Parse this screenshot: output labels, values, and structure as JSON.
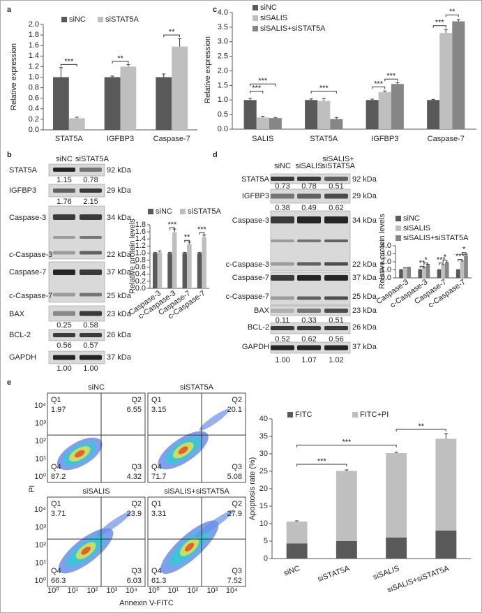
{
  "panels": [
    "a",
    "b",
    "c",
    "d",
    "e"
  ],
  "chart_data": [
    {
      "type": "bar",
      "ylabel": "Relative expression",
      "categories": [
        "STAT5A",
        "IGFBP3",
        "Caspase-7"
      ],
      "series": [
        {
          "name": "siNC",
          "color": "#595959",
          "values": [
            1.0,
            1.0,
            1.0
          ],
          "errors": [
            0.18,
            0.02,
            0.06
          ]
        },
        {
          "name": "siSTAT5A",
          "color": "#bfbfbf",
          "values": [
            0.22,
            1.2,
            1.58
          ],
          "errors": [
            0.02,
            0.04,
            0.15
          ]
        }
      ],
      "ylim": [
        0,
        2
      ],
      "yticks": [
        {
          "value": 0,
          "label": "0.0"
        },
        0.2,
        0.4,
        0.6,
        0.8,
        {
          "value": 1,
          "label": "1.0"
        },
        1.2,
        1.4,
        1.6,
        1.8,
        {
          "value": 2,
          "label": "2.0"
        }
      ],
      "annotations": [
        "***",
        "**",
        "**"
      ]
    },
    {
      "type": "bar",
      "ylabel": "Relative expression",
      "categories": [
        "SALIS",
        "STAT5A",
        "IGFBP3",
        "Caspase-7"
      ],
      "series": [
        {
          "name": "siNC",
          "color": "#595959",
          "values": [
            1.0,
            1.0,
            1.0,
            1.0
          ],
          "errors": [
            0.06,
            0.04,
            0.03,
            0.02
          ]
        },
        {
          "name": "siSALIS",
          "color": "#bfbfbf",
          "values": [
            0.4,
            0.97,
            1.27,
            3.3
          ],
          "errors": [
            0.04,
            0.08,
            0.04,
            0.12
          ]
        },
        {
          "name": "siSALIS+siSTAT5A",
          "color": "#868686",
          "values": [
            0.38,
            0.35,
            1.55,
            3.7
          ],
          "errors": [
            0.02,
            0.05,
            0.05,
            0.06
          ]
        }
      ],
      "ylim": [
        0,
        4
      ],
      "yticks": [
        {
          "value": 0,
          "label": "0.0"
        },
        0.5,
        {
          "value": 1,
          "label": "1.0"
        },
        1.5,
        {
          "value": 2,
          "label": "2.0"
        },
        2.5,
        {
          "value": 3,
          "label": "3.0"
        },
        3.5,
        {
          "value": 4,
          "label": "4.0"
        }
      ],
      "annotations": [
        "***",
        "***",
        "***",
        "***",
        "***",
        "***",
        "**"
      ]
    },
    {
      "type": "bar",
      "ylabel": "Relative protein levels",
      "categories": [
        "Caspase-3",
        "c-Caspase-3",
        "Caspase-7",
        "c-Caspase-7"
      ],
      "series": [
        {
          "name": "siNC",
          "color": "#595959",
          "values": [
            1.0,
            1.0,
            1.0,
            1.0
          ],
          "errors": [
            0.02,
            0.02,
            0.02,
            0.02
          ]
        },
        {
          "name": "siSTAT5A",
          "color": "#bfbfbf",
          "values": [
            1.02,
            1.58,
            1.25,
            1.45
          ],
          "errors": [
            0.04,
            0.1,
            0.06,
            0.06
          ]
        }
      ],
      "ylim": [
        0,
        1.8
      ],
      "yticks": [
        {
          "value": 0,
          "label": "0.0"
        },
        0.2,
        0.4,
        0.6,
        0.8,
        {
          "value": 1,
          "label": "1.0"
        },
        1.2,
        1.4,
        1.6,
        1.8
      ],
      "annotations": [
        "***",
        "**",
        "***"
      ]
    },
    {
      "type": "bar",
      "ylabel": "Relative protein levels",
      "categories": [
        "Caspase-3",
        "c-Caspase-3",
        "Caspase-7",
        "c-Caspase-7"
      ],
      "series": [
        {
          "name": "siNC",
          "color": "#595959",
          "values": [
            1.0,
            1.0,
            1.0,
            1.0
          ],
          "errors": [
            0.02,
            0.02,
            0.02,
            0.02
          ]
        },
        {
          "name": "siSALIS",
          "color": "#bfbfbf",
          "values": [
            1.2,
            1.25,
            1.55,
            2.0
          ],
          "errors": [
            0.05,
            0.08,
            0.08,
            0.1
          ]
        },
        {
          "name": "siSALIS+siSTAT5A",
          "color": "#868686",
          "values": [
            1.25,
            1.6,
            1.85,
            2.8
          ],
          "errors": [
            0.05,
            0.1,
            0.1,
            0.15
          ]
        }
      ],
      "ylim": [
        0,
        4
      ],
      "yticks": [
        {
          "value": 0,
          "label": "0.0"
        },
        {
          "value": 1,
          "label": "1.0"
        },
        {
          "value": 2,
          "label": "2.0"
        },
        {
          "value": 3,
          "label": "3.0"
        },
        {
          "value": 4,
          "label": "4.0"
        }
      ],
      "annotations": [
        "**",
        "*",
        "***",
        "*",
        "***",
        "*"
      ]
    },
    {
      "type": "bar",
      "stacked": true,
      "ylabel": "Apoptosis rate (%)",
      "categories": [
        "siNC",
        "siSTAT5A",
        "siSALIS",
        "siSALIS+siSTAT5A"
      ],
      "series": [
        {
          "name": "FITC",
          "color": "#595959",
          "values": [
            4.3,
            5.0,
            6.0,
            8.0
          ],
          "errors": [
            0.1,
            0.2,
            0.2,
            0.4
          ]
        },
        {
          "name": "FITC+PI",
          "color": "#bfbfbf",
          "values": [
            6.3,
            20.1,
            24.2,
            26.3
          ],
          "errors": [
            0.2,
            0.3,
            0.3,
            1.5
          ]
        }
      ],
      "ylim": [
        0,
        40
      ],
      "yticks": [
        0,
        5,
        10,
        15,
        20,
        25,
        30,
        35,
        40
      ],
      "annotations": [
        "***",
        "***",
        "**"
      ]
    }
  ],
  "blot_b": {
    "header": [
      "siNC",
      "siSTAT5A"
    ],
    "rows": [
      {
        "label": "STAT5A",
        "kda": "92 kDa",
        "quant": [
          "1.15",
          "0.78"
        ]
      },
      {
        "label": "IGFBP3",
        "kda": "29 kDa",
        "quant": [
          "1.76",
          "2.15"
        ]
      },
      {
        "label": "Caspase-3",
        "kda": "34 kDa"
      },
      {
        "label": "c-Caspase-3",
        "kda": "22 kDa"
      },
      {
        "label": "Caspase-7",
        "kda": "37 kDa"
      },
      {
        "label": "c-Caspase-7",
        "kda": "25 kDa"
      },
      {
        "label": "BAX",
        "kda": "23 kDa",
        "quant": [
          "0.25",
          "0.58"
        ]
      },
      {
        "label": "BCL-2",
        "kda": "26 kDa",
        "quant": [
          "0.56",
          "0.57"
        ]
      },
      {
        "label": "GAPDH",
        "kda": "37 kDa",
        "quant": [
          "1.00",
          "1.00"
        ]
      }
    ]
  },
  "blot_d": {
    "header": [
      "siNC",
      "siSALIS",
      "siSALIS+",
      "siSTAT5A"
    ],
    "rows": [
      {
        "label": "STAT5A",
        "kda": "92 kDa",
        "quant": [
          "0.73",
          "0.78",
          "0.51"
        ]
      },
      {
        "label": "IGFBP3",
        "kda": "29 kDa",
        "quant": [
          "0.38",
          "0.49",
          "0.62"
        ]
      },
      {
        "label": "Caspase-3",
        "kda": "34 kDa"
      },
      {
        "label": "c-Caspase-3",
        "kda": "22 kDa"
      },
      {
        "label": "Caspase-7",
        "kda": "37 kDa"
      },
      {
        "label": "c-Caspase-7",
        "kda": "25 kDa"
      },
      {
        "label": "BAX",
        "kda": "23 kDa",
        "quant": [
          "0.11",
          "0.33",
          "0.51"
        ]
      },
      {
        "label": "BCL-2",
        "kda": "26 kDa",
        "quant": [
          "0.52",
          "0.62",
          "0.56"
        ]
      },
      {
        "label": "GAPDH",
        "kda": "37 kDa",
        "quant": [
          "1.00",
          "1.07",
          "1.02"
        ]
      }
    ]
  },
  "flow": {
    "ylabel": "PI",
    "xlabel": "Annexin V-FITC",
    "ticks": [
      "10⁰",
      "10¹",
      "10²",
      "10³",
      "10⁴"
    ],
    "plots": [
      {
        "title": "siNC",
        "quadrants": [
          [
            "Q1",
            "1.97"
          ],
          [
            "Q2",
            "6.55"
          ],
          [
            "Q3",
            "4.32"
          ],
          [
            "Q4",
            "87.2"
          ]
        ]
      },
      {
        "title": "siSTAT5A",
        "quadrants": [
          [
            "Q1",
            "3.15"
          ],
          [
            "Q2",
            "20.1"
          ],
          [
            "Q3",
            "5.08"
          ],
          [
            "Q4",
            "71.7"
          ]
        ]
      },
      {
        "title": "siSALIS",
        "quadrants": [
          [
            "Q1",
            "3.71"
          ],
          [
            "Q2",
            "23.9"
          ],
          [
            "Q3",
            "6.03"
          ],
          [
            "Q4",
            "66.3"
          ]
        ]
      },
      {
        "title": "siSALIS+siSTAT5A",
        "quadrants": [
          [
            "Q1",
            "3.31"
          ],
          [
            "Q2",
            "27.9"
          ],
          [
            "Q3",
            "7.52"
          ],
          [
            "Q4",
            "61.3"
          ]
        ]
      }
    ]
  }
}
